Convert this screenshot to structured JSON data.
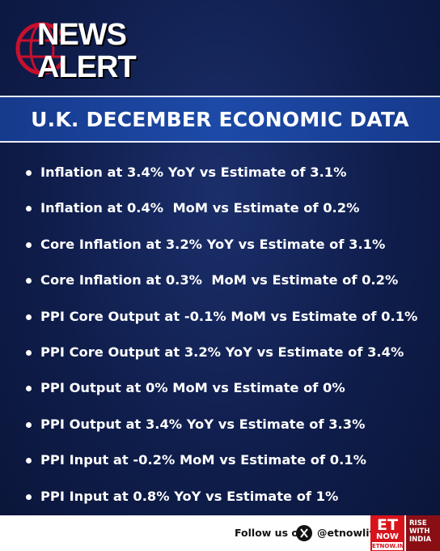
{
  "logo": {
    "line1": "NEWS",
    "line2": "ALERT"
  },
  "title": "U.K. DECEMBER ECONOMIC DATA",
  "items": [
    "Inflation at 3.4% YoY vs Estimate of 3.1%",
    "Inflation at 0.4%  MoM vs Estimate of 0.2%",
    "Core Inflation at 3.2% YoY vs Estimate of 3.1%",
    "Core Inflation at 0.3%  MoM vs Estimate of 0.2%",
    "PPI Core Output at -0.1% MoM vs Estimate of 0.1%",
    "PPI Core Output at 3.2% YoY vs Estimate of 3.4%",
    "PPI Output at 0% MoM vs Estimate of 0%",
    "PPI Output at 3.4% YoY vs Estimate of 3.3%",
    "PPI Input at -0.2% MoM vs Estimate of 0.1%",
    "PPI Input at 0.8% YoY vs Estimate of 1%"
  ],
  "footer": {
    "follow": "Follow us on",
    "handle": "@etnowlive",
    "brand": [
      "ET",
      "NOW",
      "ETNOW.IN"
    ],
    "tagline": "RISE\nWITH\nINDIA"
  }
}
